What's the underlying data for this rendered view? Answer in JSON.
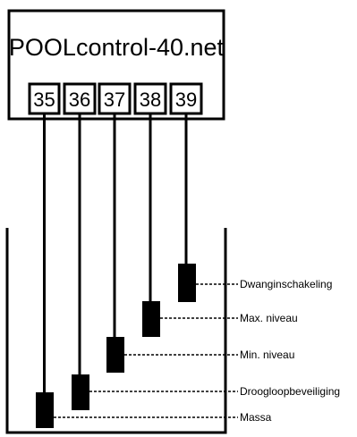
{
  "device": {
    "title": "POOLcontrol-40.net"
  },
  "terminals": [
    {
      "number": "35",
      "label": "Massa"
    },
    {
      "number": "36",
      "label": "Droogloopbeveiliging"
    },
    {
      "number": "37",
      "label": "Min. niveau"
    },
    {
      "number": "38",
      "label": "Max. niveau"
    },
    {
      "number": "39",
      "label": "Dwanginschakeling"
    }
  ],
  "colors": {
    "line": "#000000",
    "background": "#ffffff"
  }
}
